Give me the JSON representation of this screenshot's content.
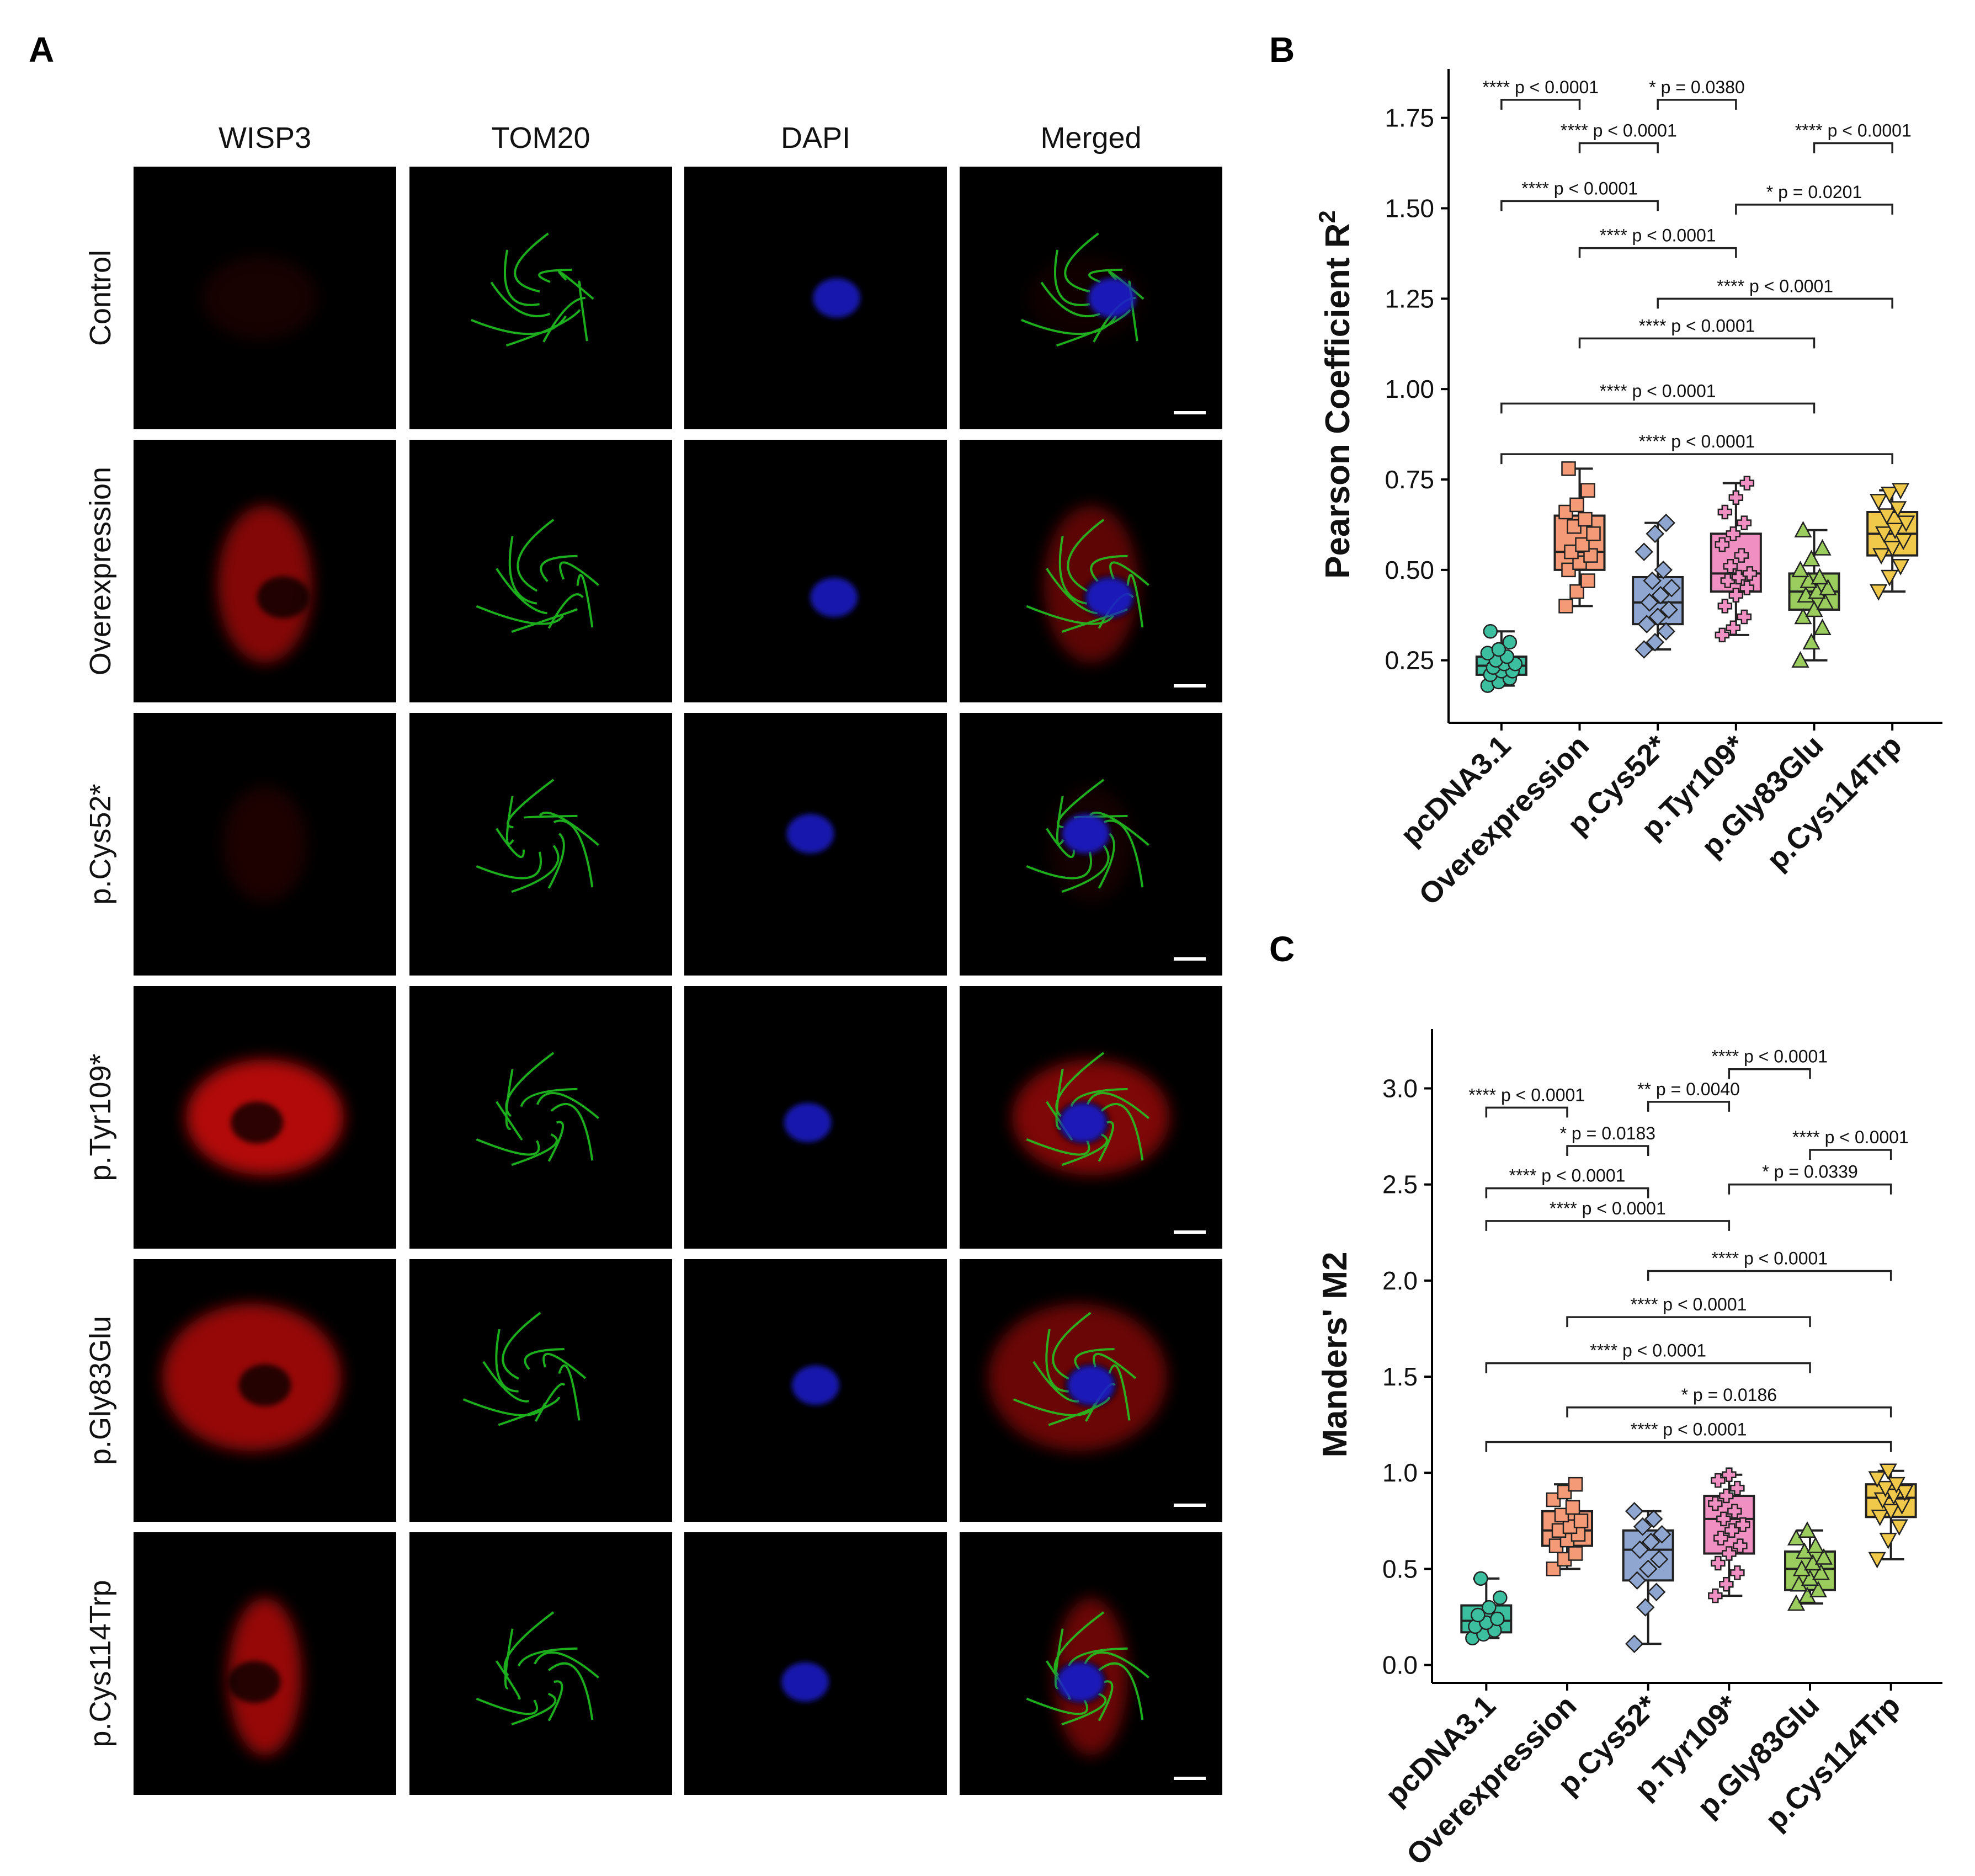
{
  "panel_labels": {
    "a": "A",
    "b": "B",
    "c": "C"
  },
  "microscopy": {
    "columns": [
      "WISP3",
      "TOM20",
      "DAPI",
      "Merged"
    ],
    "rows": [
      "Control",
      "Overexpression",
      "p.Cys52*",
      "p.Tyr109*",
      "p.Gly83Glu",
      "p.Cys114Trp"
    ],
    "colors": {
      "wisp3": "#dd1111",
      "tom20": "#22cc22",
      "dapi": "#1a1acc"
    },
    "wisp3_intensity": [
      0.12,
      0.7,
      0.15,
      0.95,
      0.8,
      0.8
    ],
    "scale_bar_label": ""
  },
  "chart_data": [
    {
      "type": "box",
      "panel": "B",
      "ylabel": "Pearson Coefficient R",
      "ylabel_superscript": "2",
      "ylim": [
        0.1,
        1.87
      ],
      "yticks": [
        "0.25",
        "0.50",
        "0.75",
        "1.00",
        "1.25",
        "1.50",
        "1.75"
      ],
      "categories": [
        "pcDNA3.1",
        "Overexpression",
        "p.Cys52*",
        "p.Tyr109*",
        "p.Gly83Glu",
        "p.Cys114Trp"
      ],
      "colors": [
        "#3bbf9e",
        "#f59a77",
        "#8fa6d1",
        "#ef8fc2",
        "#9acd5e",
        "#f0c84a"
      ],
      "markers": [
        "circle",
        "square",
        "diamond",
        "plus",
        "triangle",
        "triangle-down"
      ],
      "boxes": [
        {
          "min": 0.18,
          "q1": 0.21,
          "median": 0.235,
          "q3": 0.26,
          "max": 0.33
        },
        {
          "min": 0.4,
          "q1": 0.5,
          "median": 0.55,
          "q3": 0.65,
          "max": 0.78
        },
        {
          "min": 0.28,
          "q1": 0.35,
          "median": 0.41,
          "q3": 0.48,
          "max": 0.63
        },
        {
          "min": 0.32,
          "q1": 0.44,
          "median": 0.49,
          "q3": 0.6,
          "max": 0.74
        },
        {
          "min": 0.25,
          "q1": 0.39,
          "median": 0.44,
          "q3": 0.49,
          "max": 0.61
        },
        {
          "min": 0.44,
          "q1": 0.54,
          "median": 0.6,
          "q3": 0.66,
          "max": 0.72
        }
      ],
      "points": [
        [
          0.18,
          0.19,
          0.2,
          0.21,
          0.22,
          0.22,
          0.23,
          0.24,
          0.24,
          0.25,
          0.26,
          0.27,
          0.28,
          0.3,
          0.33
        ],
        [
          0.4,
          0.44,
          0.47,
          0.5,
          0.52,
          0.54,
          0.55,
          0.57,
          0.6,
          0.62,
          0.64,
          0.66,
          0.68,
          0.72,
          0.78
        ],
        [
          0.28,
          0.3,
          0.33,
          0.35,
          0.37,
          0.39,
          0.41,
          0.43,
          0.45,
          0.47,
          0.5,
          0.55,
          0.6,
          0.63
        ],
        [
          0.32,
          0.34,
          0.37,
          0.4,
          0.43,
          0.45,
          0.47,
          0.48,
          0.49,
          0.51,
          0.54,
          0.57,
          0.6,
          0.63,
          0.66,
          0.7,
          0.74
        ],
        [
          0.25,
          0.3,
          0.34,
          0.37,
          0.39,
          0.41,
          0.43,
          0.44,
          0.45,
          0.47,
          0.48,
          0.5,
          0.53,
          0.56,
          0.61
        ],
        [
          0.44,
          0.48,
          0.51,
          0.54,
          0.56,
          0.58,
          0.6,
          0.61,
          0.63,
          0.65,
          0.67,
          0.69,
          0.71,
          0.72
        ]
      ],
      "annotations": [
        {
          "from": 0,
          "to": 1,
          "y": 1.8,
          "text": "**** p < 0.0001"
        },
        {
          "from": 2,
          "to": 3,
          "y": 1.8,
          "text": "* p = 0.0380"
        },
        {
          "from": 1,
          "to": 2,
          "y": 1.68,
          "text": "**** p < 0.0001"
        },
        {
          "from": 4,
          "to": 5,
          "y": 1.68,
          "text": "**** p < 0.0001"
        },
        {
          "from": 0,
          "to": 2,
          "y": 1.52,
          "text": "**** p < 0.0001"
        },
        {
          "from": 3,
          "to": 5,
          "y": 1.51,
          "text": "* p = 0.0201"
        },
        {
          "from": 1,
          "to": 3,
          "y": 1.39,
          "text": "**** p < 0.0001"
        },
        {
          "from": 2,
          "to": 5,
          "y": 1.25,
          "text": "**** p < 0.0001"
        },
        {
          "from": 1,
          "to": 4,
          "y": 1.14,
          "text": "**** p < 0.0001"
        },
        {
          "from": 0,
          "to": 4,
          "y": 0.96,
          "text": "**** p < 0.0001"
        },
        {
          "from": 0,
          "to": 5,
          "y": 0.82,
          "text": "**** p < 0.0001"
        }
      ]
    },
    {
      "type": "box",
      "panel": "C",
      "ylabel": "Manders' M2",
      "ylim": [
        -0.05,
        3.28
      ],
      "yticks": [
        "0.0",
        "0.5",
        "1.0",
        "1.5",
        "2.0",
        "2.5",
        "3.0"
      ],
      "categories": [
        "pcDNA3.1",
        "Overexpression",
        "p.Cys52*",
        "p.Tyr109*",
        "p.Gly83Glu",
        "p.Cys114Trp"
      ],
      "colors": [
        "#3bbf9e",
        "#f59a77",
        "#8fa6d1",
        "#ef8fc2",
        "#9acd5e",
        "#f0c84a"
      ],
      "markers": [
        "circle",
        "square",
        "diamond",
        "plus",
        "triangle",
        "triangle-down"
      ],
      "boxes": [
        {
          "min": 0.14,
          "q1": 0.17,
          "median": 0.23,
          "q3": 0.31,
          "max": 0.45
        },
        {
          "min": 0.5,
          "q1": 0.62,
          "median": 0.7,
          "q3": 0.8,
          "max": 0.94
        },
        {
          "min": 0.11,
          "q1": 0.44,
          "median": 0.6,
          "q3": 0.7,
          "max": 0.8
        },
        {
          "min": 0.36,
          "q1": 0.58,
          "median": 0.76,
          "q3": 0.88,
          "max": 0.99
        },
        {
          "min": 0.32,
          "q1": 0.39,
          "median": 0.5,
          "q3": 0.59,
          "max": 0.7
        },
        {
          "min": 0.55,
          "q1": 0.77,
          "median": 0.87,
          "q3": 0.94,
          "max": 1.01
        }
      ],
      "points": [
        [
          0.14,
          0.16,
          0.18,
          0.2,
          0.22,
          0.24,
          0.26,
          0.3,
          0.35,
          0.45
        ],
        [
          0.5,
          0.55,
          0.58,
          0.62,
          0.65,
          0.68,
          0.7,
          0.72,
          0.75,
          0.78,
          0.82,
          0.86,
          0.9,
          0.94
        ],
        [
          0.11,
          0.3,
          0.38,
          0.44,
          0.5,
          0.55,
          0.6,
          0.64,
          0.68,
          0.72,
          0.76,
          0.8
        ],
        [
          0.36,
          0.42,
          0.48,
          0.53,
          0.58,
          0.62,
          0.66,
          0.7,
          0.73,
          0.76,
          0.8,
          0.84,
          0.88,
          0.92,
          0.96,
          0.99
        ],
        [
          0.32,
          0.36,
          0.39,
          0.42,
          0.45,
          0.48,
          0.5,
          0.53,
          0.56,
          0.59,
          0.62,
          0.66,
          0.7
        ],
        [
          0.55,
          0.65,
          0.72,
          0.77,
          0.8,
          0.83,
          0.86,
          0.88,
          0.9,
          0.92,
          0.94,
          0.97,
          1.01
        ]
      ],
      "annotations": [
        {
          "from": 3,
          "to": 4,
          "y": 3.1,
          "text": "**** p < 0.0001"
        },
        {
          "from": 0,
          "to": 1,
          "y": 2.9,
          "text": "**** p < 0.0001"
        },
        {
          "from": 2,
          "to": 3,
          "y": 2.93,
          "text": "** p = 0.0040"
        },
        {
          "from": 1,
          "to": 2,
          "y": 2.7,
          "text": "* p = 0.0183"
        },
        {
          "from": 4,
          "to": 5,
          "y": 2.68,
          "text": "**** p < 0.0001"
        },
        {
          "from": 0,
          "to": 2,
          "y": 2.48,
          "text": "**** p < 0.0001"
        },
        {
          "from": 3,
          "to": 5,
          "y": 2.5,
          "text": "* p = 0.0339"
        },
        {
          "from": 0,
          "to": 3,
          "y": 2.31,
          "text": "**** p < 0.0001"
        },
        {
          "from": 2,
          "to": 5,
          "y": 2.05,
          "text": "**** p < 0.0001"
        },
        {
          "from": 1,
          "to": 4,
          "y": 1.81,
          "text": "**** p < 0.0001"
        },
        {
          "from": 0,
          "to": 4,
          "y": 1.57,
          "text": "**** p < 0.0001"
        },
        {
          "from": 1,
          "to": 5,
          "y": 1.34,
          "text": "* p = 0.0186"
        },
        {
          "from": 0,
          "to": 5,
          "y": 1.16,
          "text": "**** p < 0.0001"
        }
      ]
    }
  ]
}
